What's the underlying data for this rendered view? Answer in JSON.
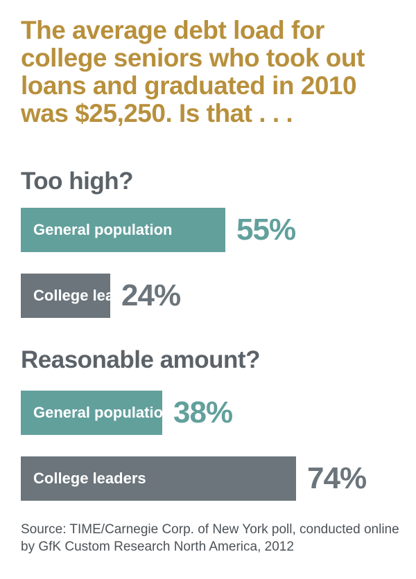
{
  "title": "The average debt load for college seniors who took out loans and graduated in 2010 was $25,250. Is that . . .",
  "colors": {
    "title": "#b8903c",
    "section": "#5b6268",
    "general_population": "#62a09c",
    "college_leaders": "#6b757b"
  },
  "chart_data": {
    "type": "bar",
    "orientation": "horizontal",
    "unit": "%",
    "sections": [
      {
        "question": "Too high?",
        "bars": [
          {
            "category": "General population",
            "value": 55,
            "label": "55%"
          },
          {
            "category": "College leaders",
            "value": 24,
            "label": "24%"
          }
        ]
      },
      {
        "question": "Reasonable amount?",
        "bars": [
          {
            "category": "General population",
            "value": 38,
            "label": "38%"
          },
          {
            "category": "College leaders",
            "value": 74,
            "label": "74%"
          }
        ]
      }
    ]
  },
  "source": "Source: TIME/Carnegie Corp. of New York poll, conducted online by GfK Custom Research North America, 2012"
}
